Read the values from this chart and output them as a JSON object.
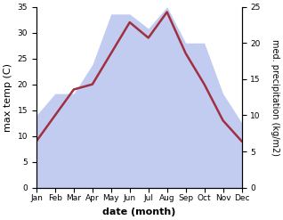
{
  "months": [
    "Jan",
    "Feb",
    "Mar",
    "Apr",
    "May",
    "Jun",
    "Jul",
    "Aug",
    "Sep",
    "Oct",
    "Nov",
    "Dec"
  ],
  "month_positions": [
    0,
    1,
    2,
    3,
    4,
    5,
    6,
    7,
    8,
    9,
    10,
    11
  ],
  "max_temp": [
    9,
    14,
    19,
    20,
    26,
    32,
    29,
    34,
    26,
    20,
    13,
    9
  ],
  "precipitation": [
    10,
    13,
    13,
    17,
    24,
    24,
    22,
    25,
    20,
    20,
    13,
    9
  ],
  "temp_ylim": [
    0,
    35
  ],
  "precip_ylim": [
    0,
    25
  ],
  "temp_yticks": [
    0,
    5,
    10,
    15,
    20,
    25,
    30,
    35
  ],
  "precip_yticks": [
    0,
    5,
    10,
    15,
    20,
    25
  ],
  "line_color": "#a03040",
  "fill_color": "#b8c4ee",
  "fill_alpha": 0.85,
  "xlabel": "date (month)",
  "ylabel_left": "max temp (C)",
  "ylabel_right": "med. precipitation (kg/m2)",
  "line_width": 1.8,
  "background_color": "#ffffff",
  "xlabel_fontsize": 8,
  "ylabel_fontsize": 8,
  "tick_fontsize": 6.5
}
